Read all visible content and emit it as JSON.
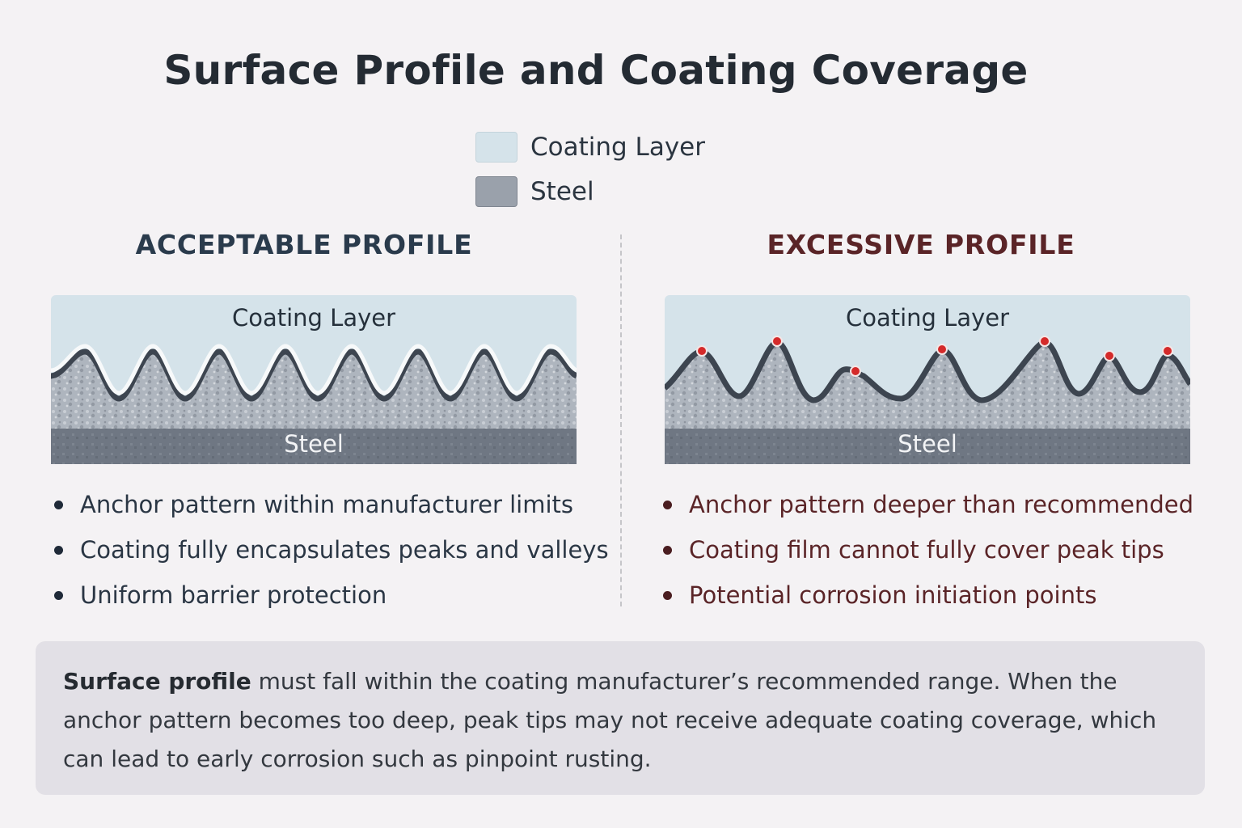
{
  "title": "Surface Profile and Coating Coverage",
  "legend": [
    {
      "label": "Coating Layer",
      "color": "#d5e3ea"
    },
    {
      "label": "Steel",
      "color": "#9aa1ab"
    }
  ],
  "left_panel": {
    "heading": "ACCEPTABLE PROFILE",
    "coating_label": "Coating Layer",
    "steel_label": "Steel",
    "bullets": [
      "Anchor pattern within manufacturer limits",
      "Coating fully encapsulates peaks and valleys",
      "Uniform barrier protection"
    ]
  },
  "right_panel": {
    "heading": "EXCESSIVE PROFILE",
    "coating_label": "Coating Layer",
    "steel_label": "Steel",
    "bullets": [
      "Anchor pattern deeper than recommended",
      "Coating film cannot fully cover peak tips",
      "Potential corrosion initiation points"
    ]
  },
  "note": {
    "bold": "Surface profile",
    "text": " must fall within the coating manufacturer’s recommended range. When the anchor pattern becomes too deep, peak tips may not receive adequate coating coverage, which can lead to early corrosion such as pinpoint rusting."
  },
  "colors": {
    "coating": "#d5e3ea",
    "steel_profile": "#a9b0b9",
    "steel_base": "#6f7783",
    "exposed_peak": "#d42a2a"
  }
}
